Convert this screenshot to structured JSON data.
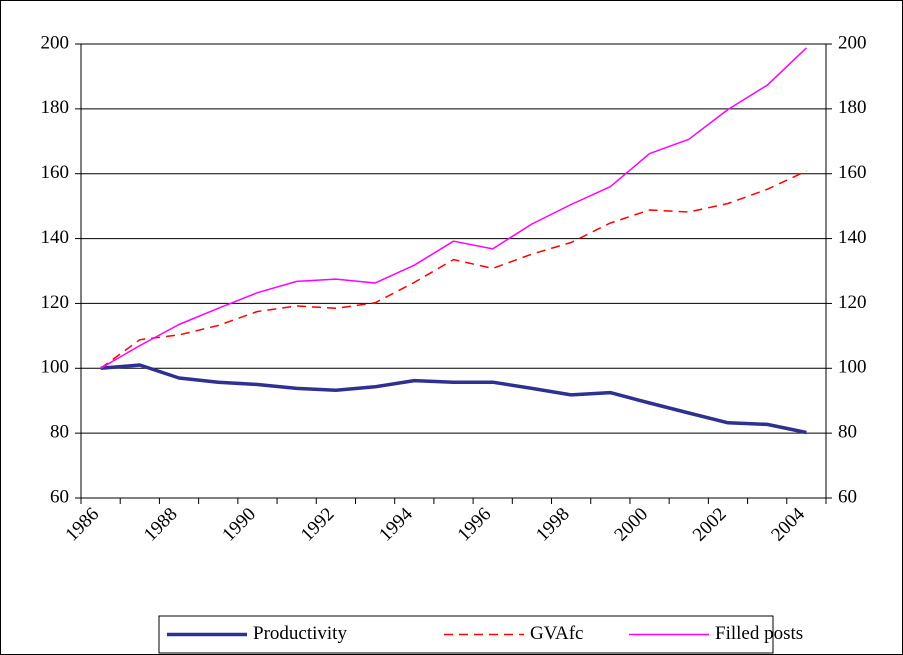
{
  "chart_data": {
    "type": "line",
    "categories": [
      "1986",
      null,
      "1988",
      null,
      "1990",
      null,
      "1992",
      null,
      "1994",
      null,
      "1996",
      null,
      "1998",
      null,
      "2000",
      null,
      "2002",
      null,
      "2004"
    ],
    "series": [
      {
        "name": "Productivity",
        "color": "#2e3192",
        "width": 3.5,
        "dashed": false,
        "values": [
          100,
          101,
          97,
          95.7,
          95,
          93.8,
          93.2,
          94.3,
          96.2,
          95.7,
          95.7,
          93.8,
          91.8,
          92.5,
          89.3,
          86.2,
          83.2,
          82.7,
          80.2
        ]
      },
      {
        "name": "GVAfc",
        "color": "#ff0000",
        "width": 1.5,
        "dashed": true,
        "values": [
          100,
          108.8,
          110.3,
          113.2,
          117.5,
          119.2,
          118.5,
          120.2,
          126.5,
          133.5,
          130.8,
          135.2,
          138.8,
          144.8,
          148.8,
          148.2,
          150.8,
          155.2,
          160.8
        ]
      },
      {
        "name": "Filled posts",
        "color": "#ff00ff",
        "width": 1.5,
        "dashed": false,
        "values": [
          100,
          107,
          113.5,
          118.5,
          123.3,
          126.8,
          127.5,
          126.3,
          131.8,
          139.2,
          136.8,
          144.5,
          150.5,
          156,
          166.2,
          170.6,
          179.8,
          187.3,
          198.8
        ]
      }
    ],
    "ylim": [
      60,
      200
    ],
    "yticks": [
      60,
      80,
      100,
      120,
      140,
      160,
      180,
      200
    ],
    "y2lim": [
      60,
      200
    ],
    "y2ticks": [
      60,
      80,
      100,
      120,
      140,
      160,
      180,
      200
    ],
    "grid": true,
    "legend": "bottom"
  }
}
